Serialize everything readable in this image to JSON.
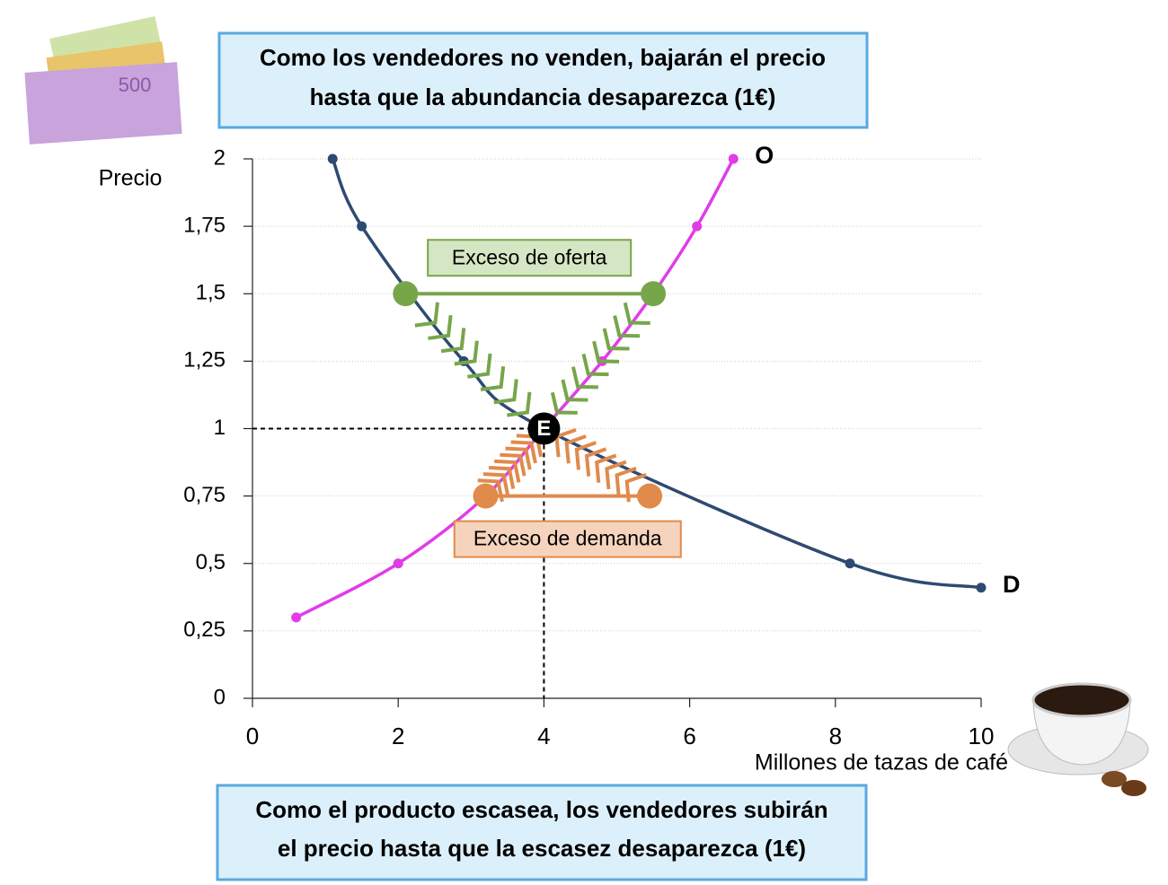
{
  "chart_data": {
    "type": "line",
    "title_lines": [
      "Como los vendedores no venden, bajarán el precio",
      "hasta que la abundancia desaparezca  (1€)"
    ],
    "footer_lines": [
      "Como el producto escasea, los vendedores subirán",
      "el precio hasta que la escasez desaparezca (1€)"
    ],
    "y_label": "Precio",
    "x_label": "Millones de tazas de café",
    "xlim": [
      0,
      10
    ],
    "xticks": [
      0,
      2,
      4,
      6,
      8,
      10
    ],
    "ylim": [
      0,
      2
    ],
    "yticks": [
      0,
      {
        "value": 0.25,
        "label": "0,25"
      },
      {
        "value": 0.5,
        "label": "0,5"
      },
      {
        "value": 0.75,
        "label": "0,75"
      },
      1,
      {
        "value": 1.25,
        "label": "1,25"
      },
      {
        "value": 1.5,
        "label": "1,5"
      },
      {
        "value": 1.75,
        "label": "1,75"
      },
      2
    ],
    "grid": true,
    "series": [
      {
        "name": "D",
        "color": "#2e4a72",
        "x": [
          1.1,
          1.5,
          2.9,
          4,
          8.2,
          10
        ],
        "values": [
          2,
          1.75,
          1.25,
          1,
          0.5,
          0.41
        ]
      },
      {
        "name": "O",
        "color": "#e03ce8",
        "x": [
          0.6,
          2,
          3.2,
          4,
          4.8,
          5.5,
          6.1,
          6.6
        ],
        "values": [
          0.3,
          0.5,
          0.75,
          1,
          1.25,
          1.5,
          1.75,
          2
        ]
      }
    ],
    "excess_supply": {
      "label": "Exceso de oferta",
      "color": "#77a64a",
      "price": 1.5,
      "x": [
        2.1,
        5.5
      ]
    },
    "excess_demand": {
      "label": "Exceso de demanda",
      "color": "#e08a4c",
      "price": 0.75,
      "x": [
        3.2,
        5.45
      ]
    },
    "equilibrium": {
      "label": "E",
      "x": 4,
      "price": 1
    }
  }
}
